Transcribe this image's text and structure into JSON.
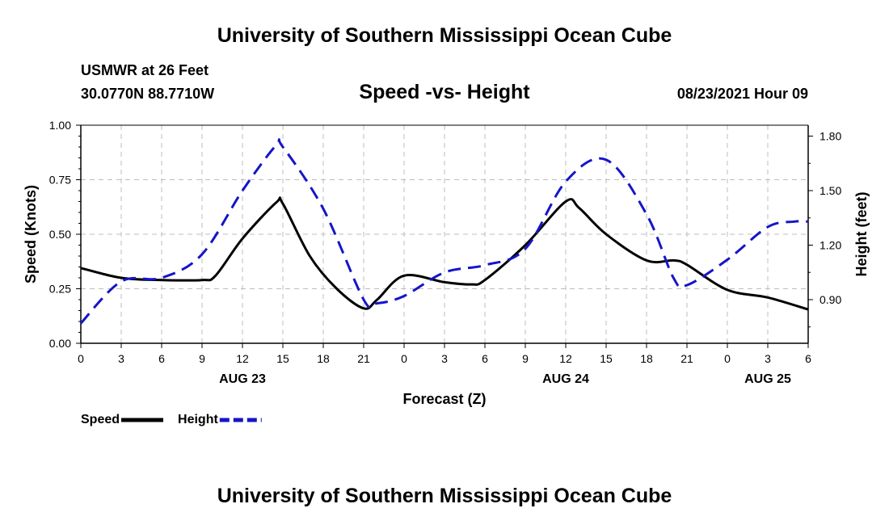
{
  "header": {
    "title_top": "University of Southern Mississippi Ocean Cube",
    "station": "USMWR at 26 Feet",
    "coords": "30.0770N  88.7710W",
    "chart_title": "Speed -vs- Height",
    "datetime": "08/23/2021 Hour 09",
    "title_bottom": "University of Southern Mississippi Ocean Cube"
  },
  "chart_data": {
    "type": "line",
    "title": "Speed -vs- Height",
    "xlabel": "Forecast (Z)",
    "ylabel_left": "Speed (Knots)",
    "ylabel_right": "Height (feet)",
    "x_hours": [
      0,
      3,
      6,
      9,
      12,
      15,
      18,
      21,
      24,
      27,
      30,
      33,
      36,
      39,
      42,
      45,
      48,
      51,
      54
    ],
    "x_tick_labels": [
      "0",
      "3",
      "6",
      "9",
      "12",
      "15",
      "18",
      "21",
      "0",
      "3",
      "6",
      "9",
      "12",
      "15",
      "18",
      "21",
      "0",
      "3",
      "6"
    ],
    "day_labels": [
      {
        "hour": 12,
        "label": "AUG 23"
      },
      {
        "hour": 36,
        "label": "AUG 24"
      },
      {
        "hour": 51,
        "label": "AUG 25"
      }
    ],
    "xlim": [
      0,
      54
    ],
    "ylim_left": [
      0,
      1.0
    ],
    "yticks_left": [
      "0.00",
      "0.25",
      "0.50",
      "0.75",
      "1.00"
    ],
    "ylim_right": [
      0.66,
      1.86
    ],
    "yticks_right": [
      "0.90",
      "1.20",
      "1.50",
      "1.80"
    ],
    "grid": true,
    "legend_position": "bottom-left",
    "series": [
      {
        "name": "Speed",
        "axis": "left",
        "color": "#000000",
        "dash": false,
        "points": [
          [
            0,
            0.345
          ],
          [
            3,
            0.3
          ],
          [
            6,
            0.29
          ],
          [
            9,
            0.29
          ],
          [
            10,
            0.31
          ],
          [
            12,
            0.48
          ],
          [
            14.5,
            0.645
          ],
          [
            15,
            0.64
          ],
          [
            17,
            0.4
          ],
          [
            19,
            0.25
          ],
          [
            21,
            0.16
          ],
          [
            22,
            0.2
          ],
          [
            24,
            0.31
          ],
          [
            27,
            0.28
          ],
          [
            29,
            0.27
          ],
          [
            30,
            0.29
          ],
          [
            33,
            0.45
          ],
          [
            36,
            0.65
          ],
          [
            37,
            0.62
          ],
          [
            39,
            0.5
          ],
          [
            42,
            0.38
          ],
          [
            44,
            0.38
          ],
          [
            45,
            0.36
          ],
          [
            48,
            0.245
          ],
          [
            51,
            0.21
          ],
          [
            54,
            0.155
          ]
        ]
      },
      {
        "name": "Height",
        "axis": "right",
        "color": "#1515c8",
        "dash": true,
        "points": [
          [
            0,
            0.77
          ],
          [
            3,
            1.0
          ],
          [
            6,
            1.02
          ],
          [
            9,
            1.15
          ],
          [
            12,
            1.5
          ],
          [
            14.5,
            1.75
          ],
          [
            15,
            1.74
          ],
          [
            18,
            1.4
          ],
          [
            21,
            0.9
          ],
          [
            22,
            0.88
          ],
          [
            24,
            0.92
          ],
          [
            27,
            1.05
          ],
          [
            30,
            1.09
          ],
          [
            33,
            1.18
          ],
          [
            36,
            1.55
          ],
          [
            39,
            1.67
          ],
          [
            42,
            1.37
          ],
          [
            44,
            1.02
          ],
          [
            45,
            0.98
          ],
          [
            48,
            1.12
          ],
          [
            51,
            1.3
          ],
          [
            53,
            1.33
          ],
          [
            54,
            1.33
          ]
        ]
      }
    ]
  }
}
